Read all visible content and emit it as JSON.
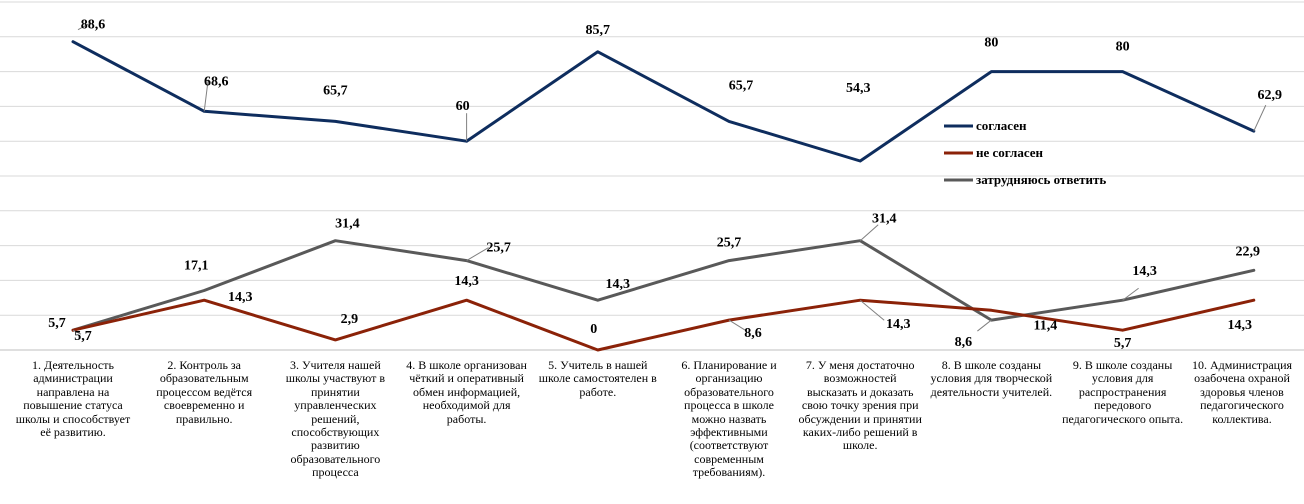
{
  "chart_data": {
    "type": "line",
    "categories": [
      "1. Деятельность администрации направлена на повышение статуса школы и способствует её развитию.",
      "2. Контроль за образовательным процессом ведётся своевременно и правильно.",
      "3. Учителя нашей школы участвуют в принятии управленческих решений, способствующих развитию образовательного процесса",
      "4. В школе организован чёткий и оперативный обмен информацией, необходимой для работы.",
      "5. Учитель в нашей школе самостоятелен в работе.",
      "6. Планирование и организацию образовательного процесса в школе можно назвать эффективными (соответствуют современным требованиям).",
      "7. У меня достаточно возможностей высказать и доказать свою точку зрения при обсуждении и принятии каких-либо решений в школе.",
      "8. В школе созданы условия для творческой деятельности учителей.",
      "9. В школе созданы условия для распространения передового педагогического опыта.",
      "10. Администрация озабочена охраной здоровья членов педагогического коллектива."
    ],
    "series": [
      {
        "name": "согласен",
        "color": "#0e2d5e",
        "values": [
          88.6,
          68.6,
          65.7,
          60,
          85.7,
          65.7,
          54.3,
          80,
          80,
          62.9
        ],
        "labels": [
          "88,6",
          "68,6",
          "65,7",
          "60",
          "85,7",
          "65,7",
          "54,3",
          "80",
          "80",
          "62,9"
        ]
      },
      {
        "name": "не согласен",
        "color": "#8b2208",
        "values": [
          5.7,
          14.3,
          2.9,
          14.3,
          0,
          8.6,
          14.3,
          11.4,
          5.7,
          14.3
        ],
        "labels": [
          "5,7",
          "14,3",
          "2,9",
          "14,3",
          "0",
          "8,6",
          "14,3",
          "11,4",
          "5,7",
          "14,3"
        ]
      },
      {
        "name": "затрудняюсь ответить",
        "color": "#595959",
        "values": [
          5.7,
          17.1,
          31.4,
          25.7,
          14.3,
          25.7,
          31.4,
          8.6,
          14.3,
          22.9
        ],
        "labels": [
          "5,7",
          "17,1",
          "31,4",
          "25,7",
          "14,3",
          "25,7",
          "31,4",
          "8,6",
          "14,3",
          "22,9"
        ]
      }
    ],
    "ylim": [
      0,
      100
    ],
    "grid": true,
    "legend": "right"
  }
}
